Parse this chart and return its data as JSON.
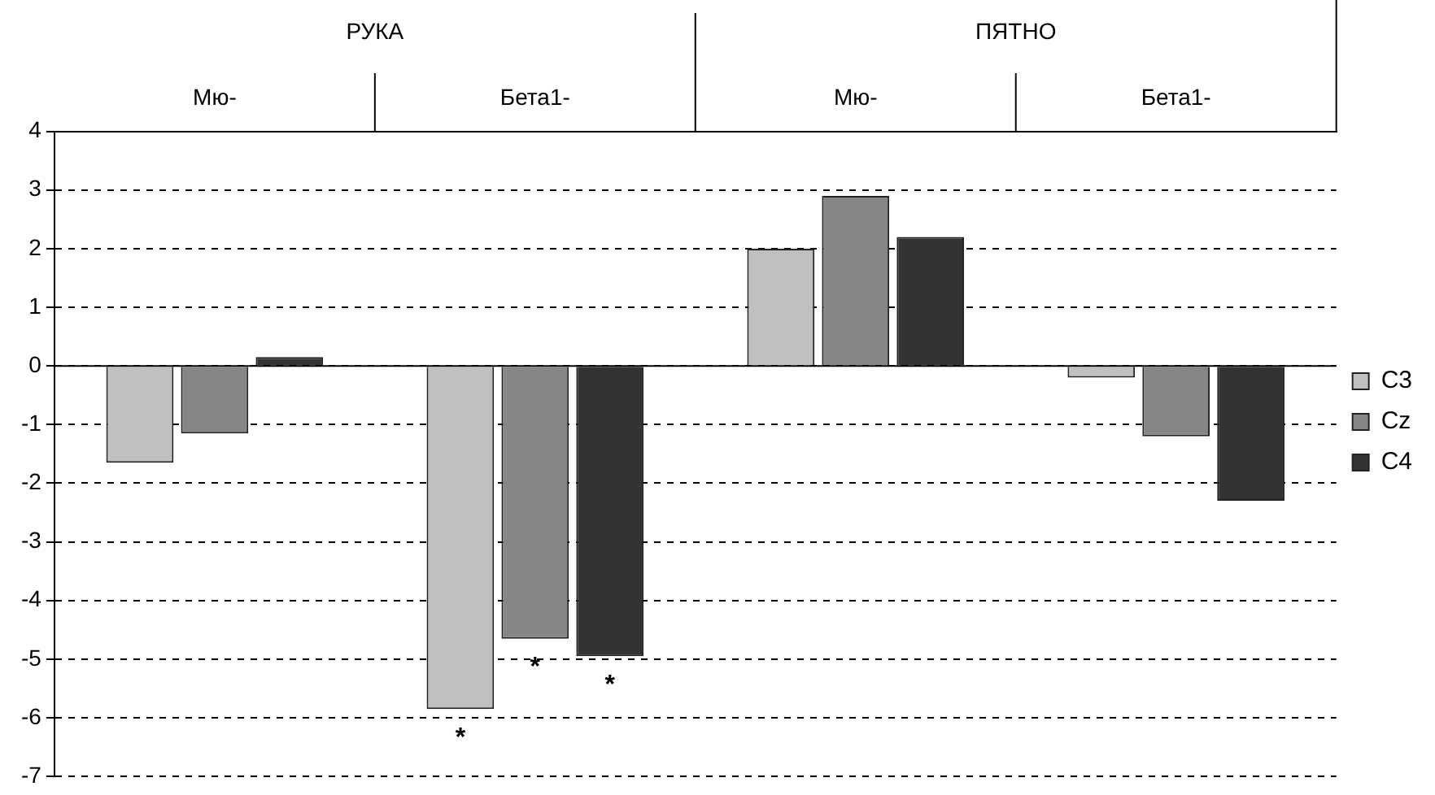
{
  "chart_data": {
    "type": "bar",
    "categories": [
      "Мю-",
      "Бета1-",
      "Мю-",
      "Бета1-"
    ],
    "series": [
      {
        "name": "C3",
        "color": "#c0c0c0",
        "values": [
          -1.65,
          -5.85,
          2.0,
          -0.2
        ]
      },
      {
        "name": "Cz",
        "color": "#868686",
        "values": [
          -1.15,
          -4.65,
          2.9,
          -1.2
        ]
      },
      {
        "name": "C4",
        "color": "#333333",
        "values": [
          0.15,
          -4.95,
          2.2,
          -2.3
        ]
      }
    ],
    "ylim": [
      -7,
      4
    ],
    "yticks": [
      -7,
      -6,
      -5,
      -4,
      -3,
      -2,
      -1,
      0,
      1,
      2,
      3,
      4
    ],
    "grid": "y",
    "legend": "right",
    "annotations": [
      "РУКА",
      "ПЯТНО",
      "*",
      "*",
      "*"
    ]
  }
}
